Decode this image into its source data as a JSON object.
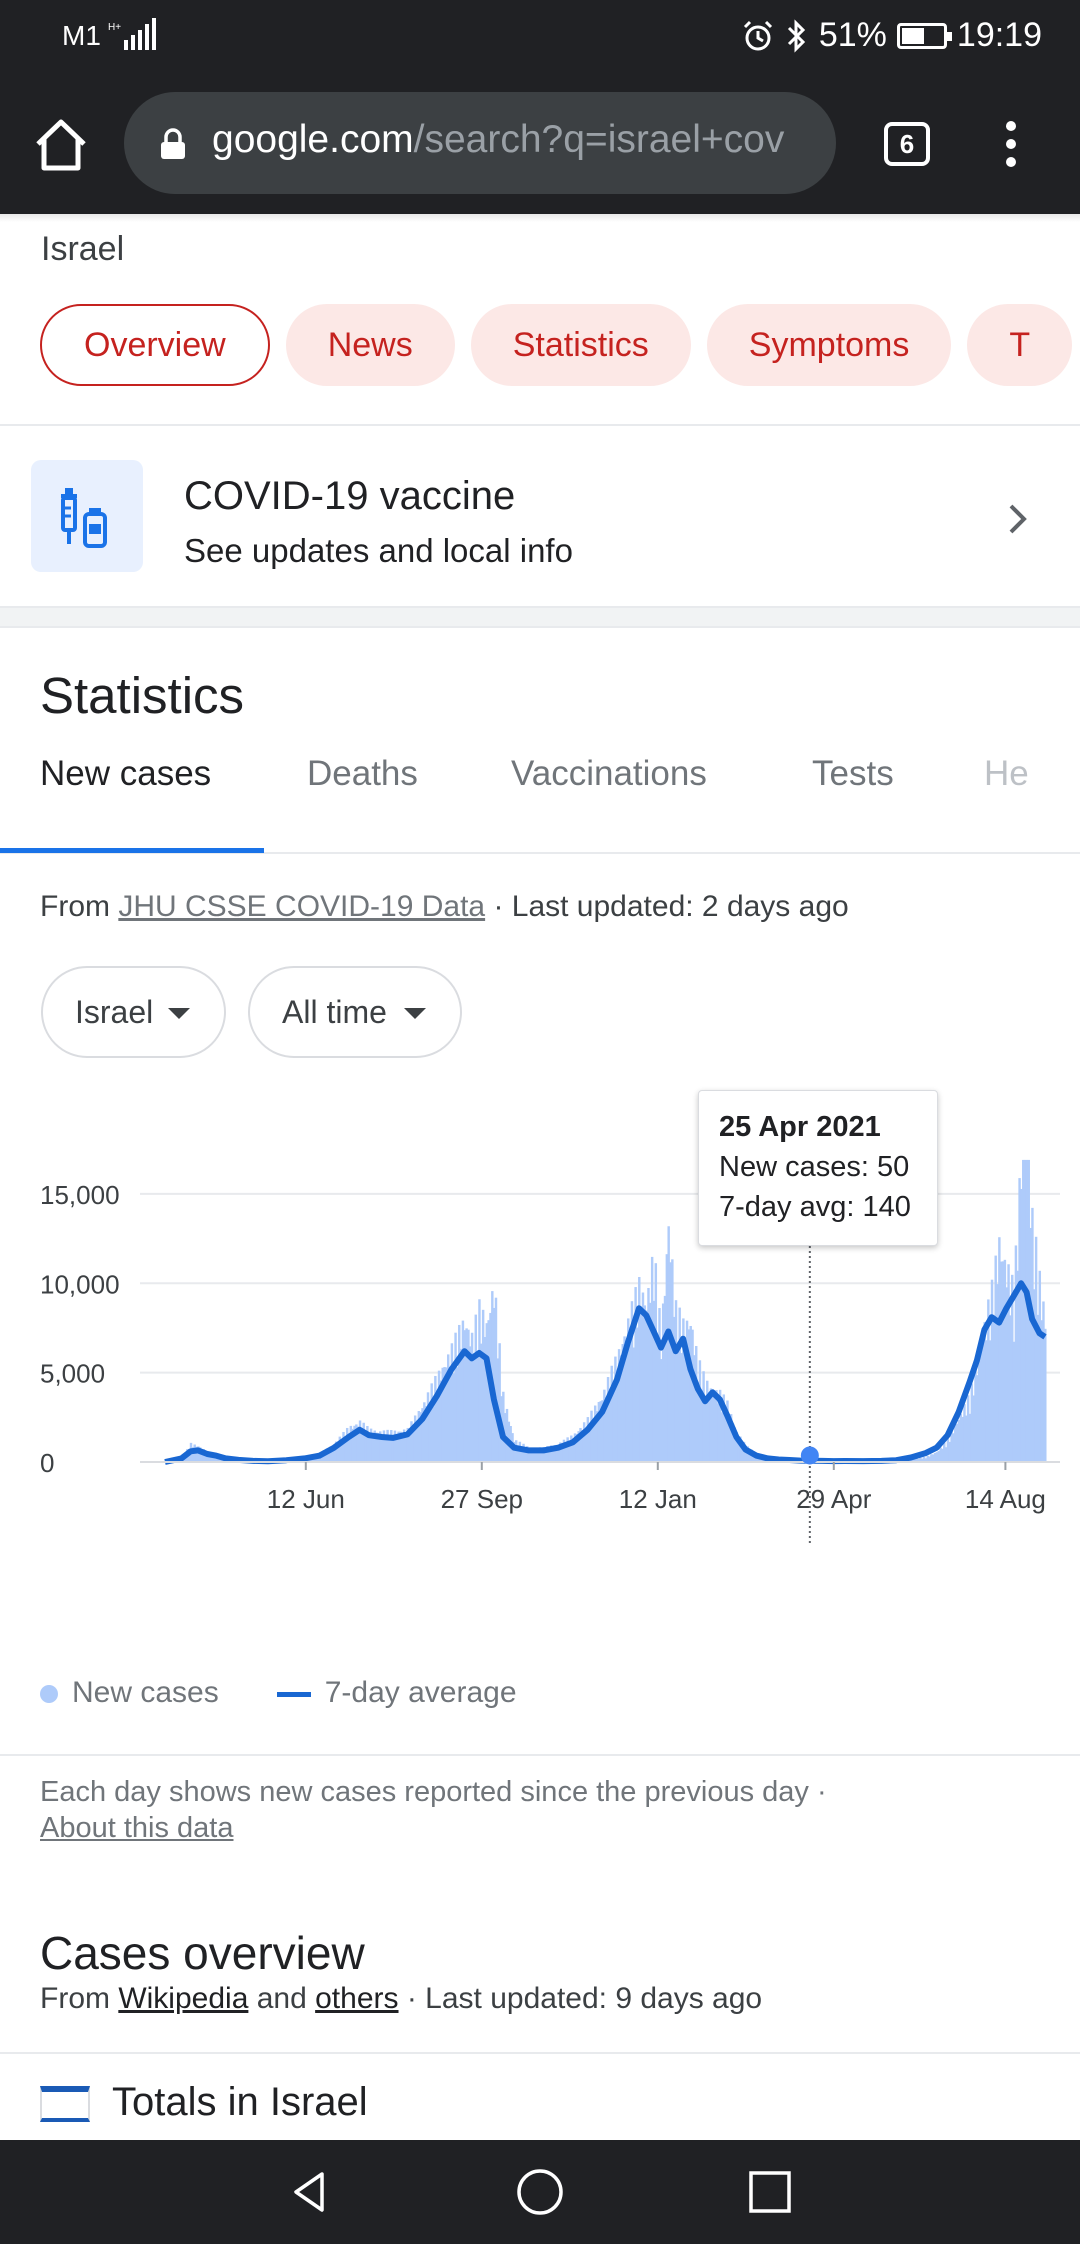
{
  "status_bar": {
    "carrier": "M1",
    "battery": "51%",
    "time": "19:19"
  },
  "browser": {
    "url_domain": "google.com",
    "url_path": "/search?q=israel+cov",
    "tab_count": "6"
  },
  "page": {
    "location": "Israel",
    "chips": [
      "Overview",
      "News",
      "Statistics",
      "Symptoms",
      "T"
    ],
    "vaccine_card": {
      "title": "COVID-19 vaccine",
      "subtitle": "See updates and local info"
    },
    "statistics": {
      "title": "Statistics",
      "tabs": [
        "New cases",
        "Deaths",
        "Vaccinations",
        "Tests",
        "He"
      ],
      "source_prefix": "From ",
      "source_link": "JHU CSSE COVID-19 Data",
      "source_suffix": " · Last updated: 2 days ago",
      "filters": {
        "location": "Israel",
        "range": "All time"
      },
      "tooltip": {
        "date": "25 Apr 2021",
        "new_cases": "New cases: 50",
        "avg": "7-day avg: 140"
      },
      "legend": {
        "bars": "New cases",
        "line": "7-day average"
      },
      "note": "Each day shows new cases reported since the previous day  ·",
      "note_link": "About this data"
    },
    "overview": {
      "title": "Cases overview",
      "from": "From ",
      "link1": "Wikipedia",
      "and": " and ",
      "link2": "others",
      "updated": " · Last updated: 9 days ago",
      "totals_label": "Totals in Israel"
    }
  },
  "colors": {
    "accent_red": "#c5221f",
    "bar_blue": "#aecbfa",
    "line_blue": "#1967d2"
  },
  "chart_data": {
    "type": "bar",
    "x_ticks": [
      "12 Jun",
      "27 Sep",
      "12 Jan",
      "29 Apr",
      "14 Aug"
    ],
    "y_ticks": [
      0,
      5000,
      10000,
      15000
    ],
    "ylim": [
      0,
      16000
    ],
    "series": [
      {
        "name": "New cases",
        "type": "bar",
        "points": [
          [
            0,
            10
          ],
          [
            9,
            150
          ],
          [
            14,
            900
          ],
          [
            18,
            800
          ],
          [
            23,
            500
          ],
          [
            28,
            350
          ],
          [
            33,
            200
          ],
          [
            40,
            120
          ],
          [
            48,
            80
          ],
          [
            56,
            60
          ],
          [
            66,
            100
          ],
          [
            76,
            200
          ],
          [
            84,
            400
          ],
          [
            92,
            900
          ],
          [
            100,
            1700
          ],
          [
            106,
            2000
          ],
          [
            111,
            1600
          ],
          [
            118,
            1500
          ],
          [
            124,
            1500
          ],
          [
            132,
            1600
          ],
          [
            140,
            2800
          ],
          [
            148,
            4200
          ],
          [
            156,
            5600
          ],
          [
            163,
            7100
          ],
          [
            167,
            6200
          ],
          [
            171,
            7600
          ],
          [
            175,
            6900
          ],
          [
            179,
            8900
          ],
          [
            184,
            3300
          ],
          [
            190,
            1100
          ],
          [
            198,
            700
          ],
          [
            206,
            700
          ],
          [
            214,
            900
          ],
          [
            222,
            1300
          ],
          [
            230,
            2100
          ],
          [
            238,
            3300
          ],
          [
            246,
            5200
          ],
          [
            252,
            6900
          ],
          [
            258,
            8800
          ],
          [
            262,
            8000
          ],
          [
            266,
            10300
          ],
          [
            270,
            6200
          ],
          [
            274,
            12000
          ],
          [
            278,
            7600
          ],
          [
            282,
            6800
          ],
          [
            286,
            7100
          ],
          [
            290,
            5000
          ],
          [
            294,
            4000
          ],
          [
            298,
            3600
          ],
          [
            302,
            3400
          ],
          [
            306,
            2900
          ],
          [
            311,
            1500
          ],
          [
            316,
            800
          ],
          [
            322,
            400
          ],
          [
            328,
            200
          ],
          [
            334,
            150
          ],
          [
            340,
            120
          ],
          [
            346,
            80
          ],
          [
            352,
            70
          ],
          [
            358,
            60
          ],
          [
            364,
            50
          ],
          [
            370,
            60
          ],
          [
            380,
            50
          ],
          [
            390,
            60
          ],
          [
            398,
            80
          ],
          [
            406,
            120
          ],
          [
            414,
            250
          ],
          [
            420,
            500
          ],
          [
            426,
            1100
          ],
          [
            432,
            2200
          ],
          [
            438,
            3300
          ],
          [
            442,
            4800
          ],
          [
            446,
            6800
          ],
          [
            450,
            8500
          ],
          [
            454,
            11000
          ],
          [
            458,
            9800
          ],
          [
            462,
            8400
          ],
          [
            466,
            15300
          ],
          [
            469,
            17000
          ],
          [
            472,
            12000
          ],
          [
            476,
            9000
          ],
          [
            479,
            7200
          ]
        ]
      },
      {
        "name": "7-day average",
        "type": "line",
        "points": [
          [
            0,
            0
          ],
          [
            9,
            200
          ],
          [
            14,
            600
          ],
          [
            18,
            650
          ],
          [
            23,
            450
          ],
          [
            28,
            350
          ],
          [
            33,
            200
          ],
          [
            40,
            120
          ],
          [
            48,
            60
          ],
          [
            56,
            40
          ],
          [
            66,
            100
          ],
          [
            76,
            200
          ],
          [
            84,
            350
          ],
          [
            92,
            800
          ],
          [
            100,
            1400
          ],
          [
            106,
            1800
          ],
          [
            111,
            1500
          ],
          [
            118,
            1400
          ],
          [
            124,
            1350
          ],
          [
            132,
            1550
          ],
          [
            140,
            2400
          ],
          [
            148,
            3700
          ],
          [
            156,
            5200
          ],
          [
            163,
            6200
          ],
          [
            167,
            5800
          ],
          [
            171,
            6100
          ],
          [
            175,
            5800
          ],
          [
            179,
            3500
          ],
          [
            184,
            1400
          ],
          [
            190,
            800
          ],
          [
            198,
            650
          ],
          [
            206,
            650
          ],
          [
            214,
            800
          ],
          [
            222,
            1100
          ],
          [
            230,
            1800
          ],
          [
            238,
            2800
          ],
          [
            246,
            4600
          ],
          [
            252,
            6700
          ],
          [
            258,
            8600
          ],
          [
            262,
            8200
          ],
          [
            266,
            7300
          ],
          [
            270,
            6400
          ],
          [
            274,
            7300
          ],
          [
            278,
            6200
          ],
          [
            282,
            6900
          ],
          [
            286,
            5200
          ],
          [
            290,
            4100
          ],
          [
            294,
            3400
          ],
          [
            298,
            3900
          ],
          [
            302,
            3500
          ],
          [
            306,
            2600
          ],
          [
            311,
            1400
          ],
          [
            316,
            700
          ],
          [
            322,
            350
          ],
          [
            328,
            200
          ],
          [
            334,
            140
          ],
          [
            340,
            110
          ],
          [
            346,
            80
          ],
          [
            352,
            70
          ],
          [
            358,
            60
          ],
          [
            364,
            50
          ],
          [
            370,
            55
          ],
          [
            380,
            50
          ],
          [
            390,
            60
          ],
          [
            398,
            100
          ],
          [
            406,
            250
          ],
          [
            414,
            500
          ],
          [
            420,
            800
          ],
          [
            426,
            1500
          ],
          [
            432,
            2800
          ],
          [
            438,
            4500
          ],
          [
            442,
            5700
          ],
          [
            446,
            7400
          ],
          [
            450,
            8100
          ],
          [
            454,
            7800
          ],
          [
            458,
            8600
          ],
          [
            462,
            9300
          ],
          [
            466,
            10000
          ],
          [
            469,
            9500
          ],
          [
            472,
            8000
          ],
          [
            476,
            7200
          ],
          [
            479,
            7000
          ]
        ]
      }
    ],
    "x_domain": [
      0,
      479
    ],
    "highlight": {
      "x": 351,
      "y": 140
    }
  }
}
